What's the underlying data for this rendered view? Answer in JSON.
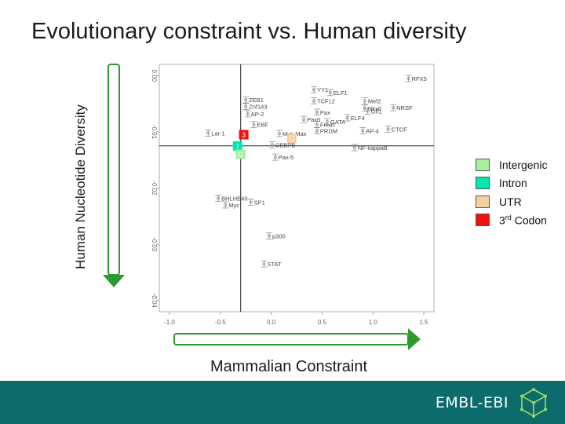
{
  "slide": {
    "title": "Evolutionary constraint vs. Human diversity",
    "y_axis_label": "Human Nucleotide Diversity",
    "x_axis_label": "Mammalian Constraint"
  },
  "legend": {
    "items": [
      {
        "label": "Intergenic",
        "color": "#a6f0a0"
      },
      {
        "label": "Intron",
        "color": "#00e8b0"
      },
      {
        "label": "UTR",
        "color": "#f8cfa0"
      },
      {
        "label_main": "3",
        "label_sup": "rd",
        "label_rest": " Codon",
        "color": "#ee1111"
      }
    ]
  },
  "footer": {
    "brand": "EMBL-EBI",
    "background": "#0c6b6b",
    "logo_icon": "hexagon-cube-icon"
  },
  "colors": {
    "axis_arrow": "#2e9a2e",
    "plot_points": "#888888",
    "plot_text": "#444444"
  },
  "chart_data": {
    "type": "scatter",
    "xlabel": "",
    "ylabel": "",
    "xlim": [
      -1.1,
      1.6
    ],
    "ylim": [
      -0.042,
      0.002
    ],
    "xticks": [
      -1.0,
      -0.5,
      0.0,
      0.5,
      1.0,
      1.5
    ],
    "xtick_labels": [
      "-1.0",
      "-0.5",
      "0.0",
      "0.5",
      "1.0",
      "1.5"
    ],
    "yticks": [
      0.0,
      -0.01,
      -0.02,
      -0.03,
      -0.04
    ],
    "ytick_labels": [
      "0.00",
      "-0.01",
      "-0.02",
      "-0.03",
      "-0.04"
    ],
    "reference_lines": {
      "x": -0.3,
      "y": -0.0125
    },
    "grid": false,
    "points": [
      {
        "label": "RFX5",
        "x": 1.35,
        "y": -0.0005
      },
      {
        "label": "YY1",
        "x": 0.42,
        "y": -0.0025
      },
      {
        "label": "ELF1",
        "x": 0.58,
        "y": -0.003
      },
      {
        "label": "TCF12",
        "x": 0.42,
        "y": -0.0045
      },
      {
        "label": "Mef2",
        "x": 0.92,
        "y": -0.0045
      },
      {
        "label": "NRSF",
        "x": 1.2,
        "y": -0.0057
      },
      {
        "label": "Nkx6",
        "x": 0.92,
        "y": -0.0058
      },
      {
        "label": "Gfi1",
        "x": 0.95,
        "y": -0.0063
      },
      {
        "label": "ZEB1",
        "x": -0.25,
        "y": -0.0043
      },
      {
        "label": "Znf143",
        "x": -0.25,
        "y": -0.0055
      },
      {
        "label": "AP-2",
        "x": -0.23,
        "y": -0.0068
      },
      {
        "label": "Pax",
        "x": 0.45,
        "y": -0.0065
      },
      {
        "label": "ELF4",
        "x": 0.75,
        "y": -0.0075
      },
      {
        "label": "Pax6",
        "x": 0.32,
        "y": -0.0078
      },
      {
        "label": "GATA",
        "x": 0.55,
        "y": -0.0082
      },
      {
        "label": "EBF",
        "x": -0.17,
        "y": -0.0087
      },
      {
        "label": "Freac",
        "x": 0.45,
        "y": -0.0087
      },
      {
        "label": "CTCF",
        "x": 1.15,
        "y": -0.0095
      },
      {
        "label": "PRDM",
        "x": 0.45,
        "y": -0.0098
      },
      {
        "label": "AP-4",
        "x": 0.9,
        "y": -0.0098
      },
      {
        "label": "Lar-1",
        "x": -0.62,
        "y": -0.0102
      },
      {
        "label": "Myc-Max",
        "x": 0.08,
        "y": -0.0103
      },
      {
        "label": "CEBPB",
        "x": 0.01,
        "y": -0.0123
      },
      {
        "label": "NF-kappaB",
        "x": 0.82,
        "y": -0.0128
      },
      {
        "label": "Pax-5",
        "x": 0.04,
        "y": -0.0145
      },
      {
        "label": "BHLHE40",
        "x": -0.52,
        "y": -0.0218
      },
      {
        "label": "SP1",
        "x": -0.2,
        "y": -0.0225
      },
      {
        "label": "Myc",
        "x": -0.45,
        "y": -0.023
      },
      {
        "label": "p300",
        "x": -0.02,
        "y": -0.0285
      },
      {
        "label": "STAT",
        "x": -0.07,
        "y": -0.0335
      }
    ],
    "category_markers": [
      {
        "label": "3",
        "category": "3rd Codon",
        "x": -0.27,
        "y": -0.0105,
        "color": "#ee1111"
      },
      {
        "label": "U",
        "category": "UTR",
        "x": 0.2,
        "y": -0.0112,
        "color": "#f8cfa0"
      },
      {
        "label": "I",
        "category": "Intron",
        "x": -0.33,
        "y": -0.0125,
        "color": "#00e8b0"
      },
      {
        "label": "G",
        "category": "Intergenic",
        "x": -0.3,
        "y": -0.014,
        "color": "#a6f0a0"
      }
    ]
  }
}
